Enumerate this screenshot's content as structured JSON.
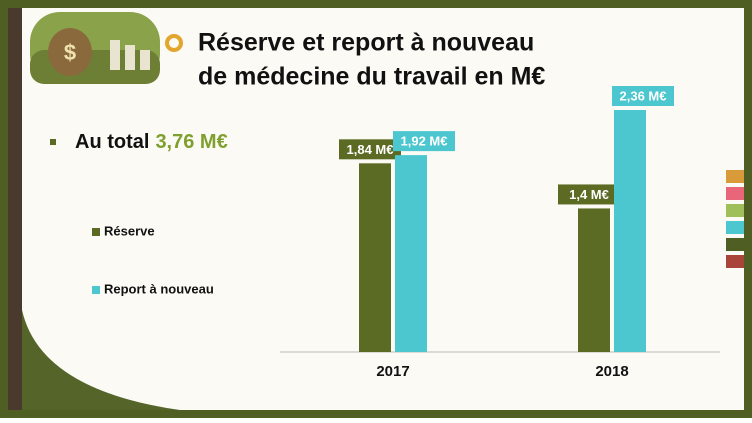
{
  "title_line1": "Réserve et report à nouveau",
  "title_line2": "de médecine du travail en M€",
  "total_label": "Au total",
  "total_value": "3,76 M€",
  "chart_data": {
    "type": "bar",
    "categories": [
      "2017",
      "2018"
    ],
    "series": [
      {
        "name": "Réserve",
        "color": "#5b6b24",
        "values": [
          1.84,
          1.4
        ],
        "value_labels": [
          "1,84 M€",
          "1,4 M€"
        ]
      },
      {
        "name": "Report à nouveau",
        "color": "#4cc6cf",
        "values": [
          1.92,
          2.36
        ],
        "value_labels": [
          "1,92 M€",
          "2,36 M€"
        ]
      }
    ]
  }
}
